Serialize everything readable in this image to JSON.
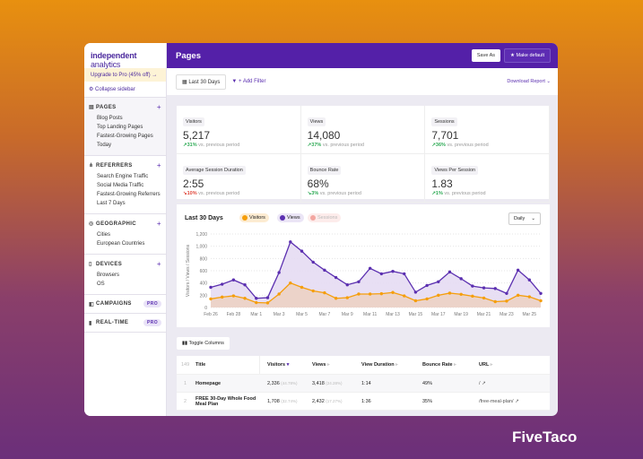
{
  "brand": {
    "name": "FiveTaco"
  },
  "sidebar": {
    "logo_main": "independent",
    "logo_sub": " analytics",
    "upgrade": "Upgrade to Pro (45% off) →",
    "collapse": "Collapse sidebar",
    "sections": [
      {
        "title": "PAGES",
        "icon": "file-icon",
        "items": [
          "Blog Posts",
          "Top Landing Pages",
          "Fastest-Growing Pages",
          "Today"
        ]
      },
      {
        "title": "REFERRERS",
        "icon": "network-icon",
        "items": [
          "Search Engine Traffic",
          "Social Media Traffic",
          "Fastest-Growing Referrers",
          "Last 7 Days"
        ]
      },
      {
        "title": "GEOGRAPHIC",
        "icon": "globe-icon",
        "items": [
          "Cities",
          "European Countries"
        ]
      },
      {
        "title": "DEVICES",
        "icon": "phone-icon",
        "items": [
          "Browsers",
          "OS"
        ]
      }
    ],
    "campaigns": "CAMPAIGNS",
    "realtime": "REAL-TIME",
    "pro": "PRO"
  },
  "header": {
    "title": "Pages",
    "save_as": "Save As",
    "make_default": "Make default"
  },
  "toolbar": {
    "date_range": "Last 30 Days",
    "add_filter": "+ Add Filter",
    "download": "Download Report"
  },
  "stats": [
    {
      "label": "Visitors",
      "value": "5,217",
      "change": "↗31%",
      "dir": "up",
      "note": "vs. previous period"
    },
    {
      "label": "Views",
      "value": "14,080",
      "change": "↗37%",
      "dir": "up",
      "note": "vs. previous period"
    },
    {
      "label": "Sessions",
      "value": "7,701",
      "change": "↗36%",
      "dir": "up",
      "note": "vs. previous period"
    },
    {
      "label": "Average Session Duration",
      "value": "2:55",
      "change": "↘10%",
      "dir": "dn",
      "note": "vs. previous period"
    },
    {
      "label": "Bounce Rate",
      "value": "68%",
      "change": "↘3%",
      "dir": "up",
      "note": "vs. previous period"
    },
    {
      "label": "Views Per Session",
      "value": "1.83",
      "change": "↗1%",
      "dir": "up",
      "note": "vs. previous period"
    }
  ],
  "chart_data": {
    "type": "area",
    "title": "Last 30 Days",
    "interval": "Daily",
    "ylabel": "Visitors / Views / Sessions",
    "ylim": [
      0,
      1200
    ],
    "yticks": [
      "0",
      "200",
      "400",
      "600",
      "800",
      "1,000",
      "1,200"
    ],
    "xticks": [
      "Feb 26",
      "Feb 28",
      "Mar 1",
      "Mar 3",
      "Mar 5",
      "Mar 7",
      "Mar 9",
      "Mar 11",
      "Mar 13",
      "Mar 15",
      "Mar 17",
      "Mar 19",
      "Mar 21",
      "Mar 23",
      "Mar 25"
    ],
    "series": [
      {
        "name": "Visitors",
        "color": "#f59e0b",
        "values": [
          140,
          170,
          190,
          150,
          80,
          75,
          220,
          400,
          330,
          270,
          240,
          150,
          160,
          220,
          220,
          225,
          245,
          190,
          110,
          140,
          200,
          235,
          215,
          185,
          155,
          95,
          105,
          200,
          175,
          110
        ]
      },
      {
        "name": "Views",
        "color": "#5b2fb0",
        "values": [
          330,
          380,
          450,
          370,
          150,
          160,
          570,
          1070,
          920,
          740,
          610,
          490,
          370,
          420,
          640,
          550,
          590,
          550,
          250,
          360,
          420,
          580,
          470,
          350,
          320,
          310,
          230,
          610,
          450,
          230
        ]
      },
      {
        "name": "Sessions",
        "color": "#f3a6a0",
        "values": []
      }
    ]
  },
  "table": {
    "toggle": "Toggle Columns",
    "count": "149",
    "headers": [
      "Title",
      "Visitors",
      "Views",
      "View Duration",
      "Bounce Rate",
      "URL"
    ],
    "rows": [
      {
        "n": "1",
        "title": "Homepage",
        "visitors": "2,336",
        "vp": "(44.78%)",
        "views": "3,418",
        "wp": "(24.28%)",
        "dur": "1:14",
        "bounce": "49%",
        "url": "/"
      },
      {
        "n": "2",
        "title": "FREE 30-Day Whole Food Meal Plan",
        "visitors": "1,708",
        "vp": "(32.74%)",
        "views": "2,432",
        "wp": "(17.27%)",
        "dur": "1:36",
        "bounce": "35%",
        "url": "/free-meal-plan/"
      }
    ]
  }
}
